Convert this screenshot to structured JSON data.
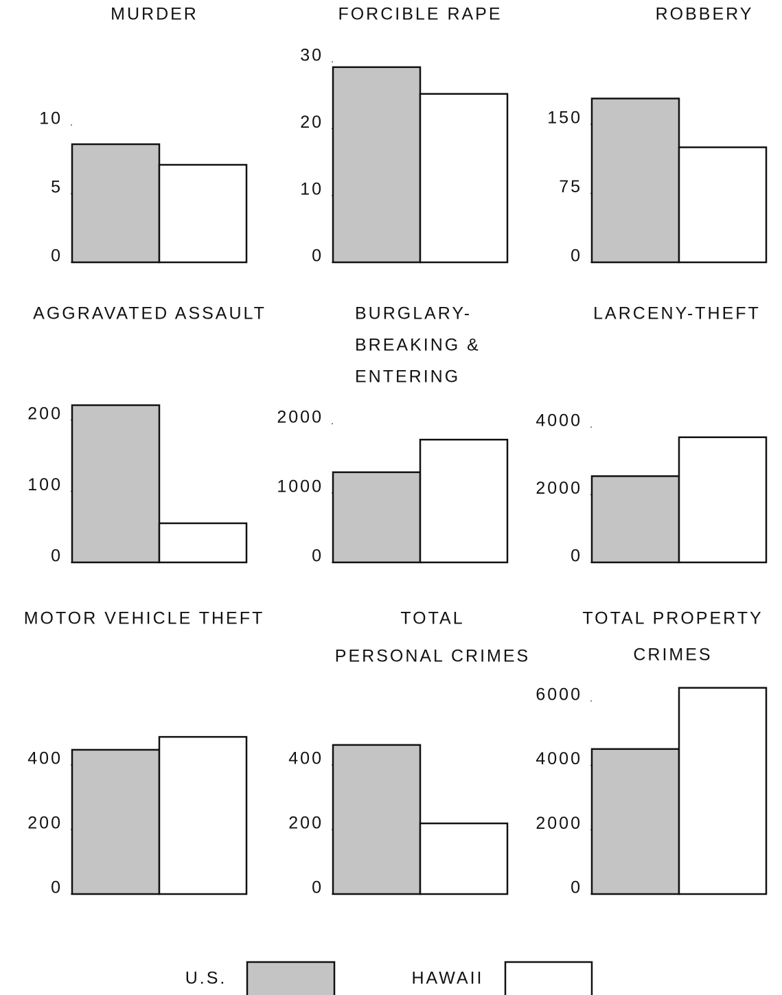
{
  "legend": {
    "items": [
      {
        "name": "U.S.",
        "color": "#c4c4c4"
      },
      {
        "name": "HAWAII",
        "color": "#ffffff"
      }
    ]
  },
  "chart_data": [
    {
      "type": "bar",
      "title": [
        "MURDER"
      ],
      "values": [
        8.6,
        7.1
      ],
      "ylim": [
        0,
        10
      ],
      "yticks": [
        0,
        5,
        10
      ]
    },
    {
      "type": "bar",
      "title": [
        "FORCIBLE RAPE"
      ],
      "values": [
        29.2,
        25.2
      ],
      "ylim": [
        0,
        30
      ],
      "yticks": [
        0,
        10,
        20,
        30
      ]
    },
    {
      "type": "bar",
      "title": [
        "ROBBERY"
      ],
      "values": [
        178,
        125
      ],
      "ylim": [
        0,
        200
      ],
      "yticks": [
        0,
        75,
        150
      ]
    },
    {
      "type": "bar",
      "title": [
        "AGGRAVATED ASSAULT"
      ],
      "values": [
        221,
        55
      ],
      "ylim": [
        0,
        250
      ],
      "yticks": [
        0,
        100,
        200
      ]
    },
    {
      "type": "bar",
      "title": [
        "BURGLARY-",
        "BREAKING &",
        "ENTERING"
      ],
      "values": [
        1300,
        1770
      ],
      "ylim": [
        0,
        2000
      ],
      "yticks": [
        0,
        1000,
        2000
      ]
    },
    {
      "type": "bar",
      "title": [
        "LARCENY-THEFT"
      ],
      "values": [
        2550,
        3700
      ],
      "ylim": [
        0,
        4000
      ],
      "yticks": [
        0,
        2000,
        4000
      ]
    },
    {
      "type": "bar",
      "title": [
        "MOTOR VEHICLE THEFT"
      ],
      "values": [
        447,
        487
      ],
      "ylim": [
        0,
        500
      ],
      "yticks": [
        0,
        200,
        400
      ]
    },
    {
      "type": "bar",
      "title": [
        "TOTAL",
        "PERSONAL CRIMES"
      ],
      "values": [
        462,
        219
      ],
      "ylim": [
        0,
        500
      ],
      "yticks": [
        0,
        200,
        400
      ]
    },
    {
      "type": "bar",
      "title": [
        "TOTAL PROPERTY",
        "CRIMES"
      ],
      "values": [
        4508,
        6410
      ],
      "ylim": [
        0,
        7000
      ],
      "yticks": [
        0,
        2000,
        4000,
        6000
      ]
    }
  ]
}
